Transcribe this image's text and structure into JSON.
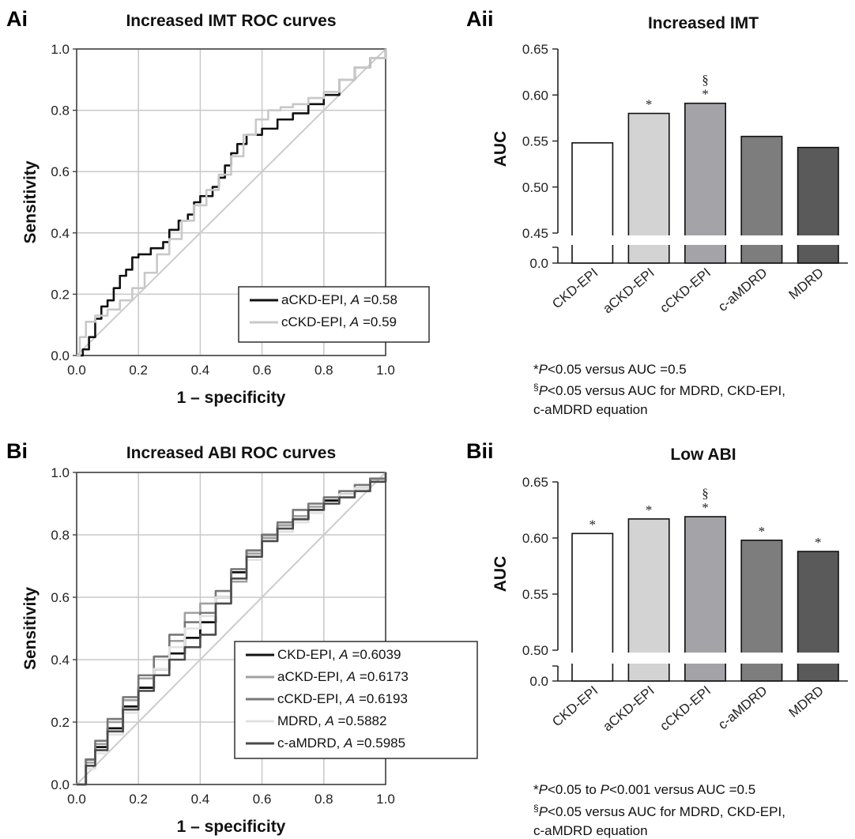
{
  "panels": {
    "ai": {
      "letter": "Ai"
    },
    "aii": {
      "letter": "Aii"
    },
    "bi": {
      "letter": "Bi"
    },
    "bii": {
      "letter": "Bii"
    }
  },
  "notes": {
    "aii_star_prefix": "*",
    "aii_star_p": "P",
    "aii_star_text": "<0.05 versus AUC =0.5",
    "aii_sect_prefix": "§",
    "aii_sect_p": "P",
    "aii_sect_text": "<0.05 versus AUC for MDRD, CKD-EPI,",
    "aii_sect_line2": "c-aMDRD equation",
    "bii_star_prefix": "*",
    "bii_star_p1": "P",
    "bii_star_mid": "<0.05 to ",
    "bii_star_p2": "P",
    "bii_star_text": "<0.001 versus AUC =0.5",
    "bii_sect_prefix": "§",
    "bii_sect_p": "P",
    "bii_sect_text": "<0.05 versus AUC for MDRD, CKD-EPI,",
    "bii_sect_line2": "c-aMDRD equation"
  },
  "colors": {
    "CKD-EPI": "#ffffff",
    "aCKD-EPI": "#d3d3d3",
    "cCKD-EPI": "#a3a3a8",
    "c-aMDRD": "#7d7d7d",
    "MDRD": "#5a5a5a",
    "roc_black": "#111111",
    "roc_light": "#c8c8c8",
    "roc_mid": "#a0a0a0",
    "roc_mid2": "#787878",
    "roc_faint": "#e2e2e2",
    "roc_dark": "#4a4a4a",
    "diagonal": "#cccccc",
    "grid": "#c8c8c8"
  },
  "chart_data": [
    {
      "id": "ai",
      "type": "line",
      "title": "Increased IMT ROC curves",
      "xlabel": "1 – specificity",
      "ylabel": "Sensitivity",
      "xlim": [
        0,
        1
      ],
      "ylim": [
        0,
        1
      ],
      "xticks": [
        "0.0",
        "0.2",
        "0.4",
        "0.6",
        "0.8",
        "1.0"
      ],
      "yticks": [
        "0.0",
        "0.2",
        "0.4",
        "0.6",
        "0.8",
        "1.0"
      ],
      "grid": true,
      "legend_position": "bottom-right",
      "series": [
        {
          "name": "aCKD-EPI",
          "area_label": "A",
          "area_value": "=0.58",
          "color": "#111111",
          "width": 2.6,
          "x": [
            0,
            0.02,
            0.04,
            0.06,
            0.08,
            0.1,
            0.12,
            0.14,
            0.16,
            0.18,
            0.2,
            0.24,
            0.28,
            0.3,
            0.33,
            0.36,
            0.38,
            0.4,
            0.44,
            0.46,
            0.48,
            0.5,
            0.52,
            0.55,
            0.6,
            0.65,
            0.7,
            0.75,
            0.8,
            0.85,
            0.9,
            0.95,
            1.0
          ],
          "y": [
            0,
            0.02,
            0.06,
            0.12,
            0.16,
            0.18,
            0.22,
            0.26,
            0.28,
            0.32,
            0.33,
            0.35,
            0.37,
            0.41,
            0.44,
            0.46,
            0.5,
            0.52,
            0.55,
            0.58,
            0.62,
            0.66,
            0.69,
            0.72,
            0.74,
            0.77,
            0.79,
            0.82,
            0.85,
            0.9,
            0.94,
            0.97,
            1.0
          ]
        },
        {
          "name": "cCKD-EPI",
          "area_label": "A",
          "area_value": "=0.59",
          "color": "#c8c8c8",
          "width": 2.6,
          "x": [
            0,
            0.01,
            0.03,
            0.06,
            0.1,
            0.14,
            0.18,
            0.22,
            0.26,
            0.3,
            0.34,
            0.38,
            0.42,
            0.46,
            0.5,
            0.54,
            0.58,
            0.62,
            0.66,
            0.7,
            0.75,
            0.8,
            0.85,
            0.9,
            0.95,
            1.0
          ],
          "y": [
            0,
            0.06,
            0.11,
            0.13,
            0.15,
            0.18,
            0.22,
            0.27,
            0.33,
            0.38,
            0.44,
            0.49,
            0.54,
            0.59,
            0.65,
            0.72,
            0.77,
            0.8,
            0.81,
            0.82,
            0.84,
            0.86,
            0.9,
            0.94,
            0.97,
            1.0
          ]
        }
      ],
      "diagonal": true
    },
    {
      "id": "aii",
      "type": "bar",
      "title": "Increased IMT",
      "ylabel": "AUC",
      "categories": [
        "CKD-EPI",
        "aCKD-EPI",
        "cCKD-EPI",
        "c-aMDRD",
        "MDRD"
      ],
      "values": [
        0.548,
        0.58,
        0.591,
        0.555,
        0.543
      ],
      "ylim": [
        0.45,
        0.65
      ],
      "broken_axis": {
        "lower_tick": "0.0"
      },
      "yticks": [
        "0.45",
        "0.50",
        "0.55",
        "0.60",
        "0.65"
      ],
      "annotations": [
        [
          "",
          ""
        ],
        [
          "*",
          ""
        ],
        [
          "*",
          "§"
        ],
        [
          "",
          ""
        ],
        [
          "",
          ""
        ]
      ]
    },
    {
      "id": "bi",
      "type": "line",
      "title": "Increased ABI ROC curves",
      "xlabel": "1 – specificity",
      "ylabel": "Sensitivity",
      "xlim": [
        0,
        1
      ],
      "ylim": [
        0,
        1
      ],
      "xticks": [
        "0.0",
        "0.2",
        "0.4",
        "0.6",
        "0.8",
        "1.0"
      ],
      "yticks": [
        "0.0",
        "0.2",
        "0.4",
        "0.6",
        "0.8",
        "1.0"
      ],
      "grid": true,
      "legend_position": "bottom-right",
      "series": [
        {
          "name": "CKD-EPI",
          "area_label": "A",
          "area_value": "=0.6039",
          "color": "#111111",
          "width": 2.8,
          "x": [
            0,
            0.03,
            0.06,
            0.1,
            0.15,
            0.2,
            0.25,
            0.3,
            0.35,
            0.4,
            0.45,
            0.5,
            0.55,
            0.6,
            0.65,
            0.7,
            0.75,
            0.8,
            0.85,
            0.9,
            0.95,
            1.0
          ],
          "y": [
            0,
            0.08,
            0.12,
            0.18,
            0.25,
            0.31,
            0.37,
            0.42,
            0.47,
            0.52,
            0.6,
            0.68,
            0.75,
            0.8,
            0.83,
            0.85,
            0.88,
            0.91,
            0.93,
            0.95,
            0.98,
            1.0
          ]
        },
        {
          "name": "aCKD-EPI",
          "area_label": "A",
          "area_value": "=0.6173",
          "color": "#a0a0a0",
          "width": 2.6,
          "x": [
            0,
            0.03,
            0.06,
            0.1,
            0.15,
            0.2,
            0.25,
            0.3,
            0.35,
            0.4,
            0.45,
            0.5,
            0.55,
            0.6,
            0.65,
            0.7,
            0.75,
            0.8,
            0.85,
            0.9,
            0.95,
            1.0
          ],
          "y": [
            0,
            0.07,
            0.13,
            0.2,
            0.27,
            0.34,
            0.41,
            0.46,
            0.55,
            0.58,
            0.6,
            0.65,
            0.74,
            0.79,
            0.83,
            0.86,
            0.89,
            0.92,
            0.94,
            0.95,
            0.97,
            1.0
          ]
        },
        {
          "name": "cCKD-EPI",
          "area_label": "A",
          "area_value": "=0.6193",
          "color": "#787878",
          "width": 2.6,
          "x": [
            0,
            0.03,
            0.06,
            0.1,
            0.15,
            0.2,
            0.25,
            0.3,
            0.35,
            0.4,
            0.45,
            0.5,
            0.55,
            0.6,
            0.65,
            0.7,
            0.75,
            0.8,
            0.85,
            0.9,
            0.95,
            1.0
          ],
          "y": [
            0,
            0.08,
            0.14,
            0.21,
            0.28,
            0.35,
            0.41,
            0.48,
            0.52,
            0.55,
            0.62,
            0.69,
            0.75,
            0.8,
            0.84,
            0.88,
            0.9,
            0.92,
            0.94,
            0.96,
            0.98,
            1.0
          ]
        },
        {
          "name": "MDRD",
          "area_label": "A",
          "area_value": "=0.5882",
          "color": "#e2e2e2",
          "width": 2.6,
          "x": [
            0,
            0.03,
            0.06,
            0.1,
            0.15,
            0.2,
            0.25,
            0.3,
            0.35,
            0.4,
            0.45,
            0.5,
            0.55,
            0.6,
            0.65,
            0.7,
            0.75,
            0.8,
            0.85,
            0.9,
            0.95,
            1.0
          ],
          "y": [
            0,
            0.05,
            0.1,
            0.16,
            0.23,
            0.3,
            0.37,
            0.44,
            0.5,
            0.54,
            0.6,
            0.66,
            0.72,
            0.78,
            0.81,
            0.84,
            0.87,
            0.9,
            0.93,
            0.95,
            0.97,
            1.0
          ]
        },
        {
          "name": "c-aMDRD",
          "area_label": "A",
          "area_value": "=0.5985",
          "color": "#4a4a4a",
          "width": 2.6,
          "x": [
            0,
            0.03,
            0.06,
            0.1,
            0.15,
            0.2,
            0.25,
            0.3,
            0.35,
            0.4,
            0.45,
            0.5,
            0.55,
            0.6,
            0.65,
            0.7,
            0.75,
            0.8,
            0.85,
            0.9,
            0.95,
            1.0
          ],
          "y": [
            0,
            0.06,
            0.11,
            0.17,
            0.24,
            0.3,
            0.35,
            0.4,
            0.44,
            0.48,
            0.58,
            0.66,
            0.73,
            0.78,
            0.82,
            0.85,
            0.88,
            0.9,
            0.92,
            0.94,
            0.97,
            1.0
          ]
        }
      ],
      "diagonal": true
    },
    {
      "id": "bii",
      "type": "bar",
      "title": "Low ABI",
      "ylabel": "AUC",
      "categories": [
        "CKD-EPI",
        "aCKD-EPI",
        "cCKD-EPI",
        "c-aMDRD",
        "MDRD"
      ],
      "values": [
        0.604,
        0.617,
        0.619,
        0.598,
        0.588
      ],
      "ylim": [
        0.5,
        0.65
      ],
      "broken_axis": {
        "lower_tick": "0.0"
      },
      "yticks": [
        "0.50",
        "0.55",
        "0.60",
        "0.65"
      ],
      "annotations": [
        [
          "*",
          ""
        ],
        [
          "*",
          ""
        ],
        [
          "*",
          "§"
        ],
        [
          "*",
          ""
        ],
        [
          "*",
          ""
        ]
      ]
    }
  ]
}
